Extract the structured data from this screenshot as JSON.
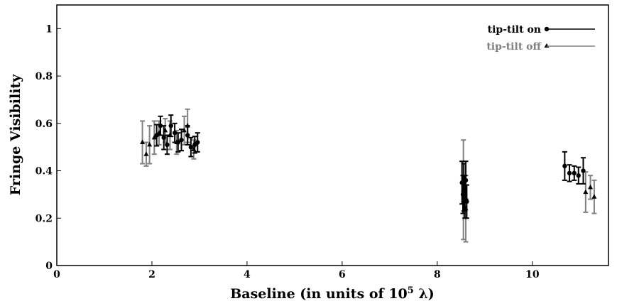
{
  "chart_data": {
    "type": "scatter",
    "xlabel": "Baseline (in units of 10",
    "xlabel_exp": "5",
    "xlabel_tail": " λ)",
    "ylabel": "Fringe Visibility",
    "xlim": [
      0,
      11.6
    ],
    "ylim": [
      0,
      1.1
    ],
    "x_ticks": [
      0,
      2,
      4,
      6,
      8,
      10
    ],
    "y_ticks": [
      0,
      0.2,
      0.4,
      0.6,
      0.8,
      1
    ],
    "x_tick_labels": [
      "0",
      "2",
      "4",
      "6",
      "8",
      "10"
    ],
    "y_tick_labels": [
      "0",
      "0.2",
      "0.4",
      "0.6",
      "0.8",
      "1"
    ],
    "legend_position": "top-right",
    "series": [
      {
        "name": "tip-tilt on",
        "marker": "circle",
        "color": "#000000",
        "points": [
          {
            "x": 2.1,
            "y": 0.55,
            "err": 0.045
          },
          {
            "x": 2.18,
            "y": 0.59,
            "err": 0.04
          },
          {
            "x": 2.25,
            "y": 0.54,
            "err": 0.05
          },
          {
            "x": 2.32,
            "y": 0.51,
            "err": 0.04
          },
          {
            "x": 2.4,
            "y": 0.59,
            "err": 0.045
          },
          {
            "x": 2.48,
            "y": 0.56,
            "err": 0.04
          },
          {
            "x": 2.55,
            "y": 0.52,
            "err": 0.04
          },
          {
            "x": 2.62,
            "y": 0.53,
            "err": 0.045
          },
          {
            "x": 2.75,
            "y": 0.55,
            "err": 0.04
          },
          {
            "x": 2.82,
            "y": 0.5,
            "err": 0.04
          },
          {
            "x": 2.9,
            "y": 0.51,
            "err": 0.035
          },
          {
            "x": 2.96,
            "y": 0.52,
            "err": 0.04
          },
          {
            "x": 8.52,
            "y": 0.35,
            "err": 0.09
          },
          {
            "x": 8.54,
            "y": 0.3,
            "err": 0.08
          },
          {
            "x": 8.56,
            "y": 0.33,
            "err": 0.1
          },
          {
            "x": 8.58,
            "y": 0.29,
            "err": 0.09
          },
          {
            "x": 8.6,
            "y": 0.36,
            "err": 0.08
          },
          {
            "x": 8.62,
            "y": 0.27,
            "err": 0.07
          },
          {
            "x": 10.68,
            "y": 0.42,
            "err": 0.06
          },
          {
            "x": 10.78,
            "y": 0.39,
            "err": 0.035
          },
          {
            "x": 10.88,
            "y": 0.39,
            "err": 0.03
          },
          {
            "x": 10.97,
            "y": 0.38,
            "err": 0.035
          },
          {
            "x": 11.07,
            "y": 0.4,
            "err": 0.055
          }
        ]
      },
      {
        "name": "tip-tilt off",
        "marker": "triangle",
        "color": "#808080",
        "points": [
          {
            "x": 1.8,
            "y": 0.52,
            "err": 0.09
          },
          {
            "x": 1.88,
            "y": 0.47,
            "err": 0.05
          },
          {
            "x": 1.95,
            "y": 0.51,
            "err": 0.08
          },
          {
            "x": 2.05,
            "y": 0.54,
            "err": 0.07
          },
          {
            "x": 2.15,
            "y": 0.56,
            "err": 0.05
          },
          {
            "x": 2.28,
            "y": 0.57,
            "err": 0.05
          },
          {
            "x": 2.38,
            "y": 0.55,
            "err": 0.06
          },
          {
            "x": 2.52,
            "y": 0.52,
            "err": 0.05
          },
          {
            "x": 2.68,
            "y": 0.57,
            "err": 0.06
          },
          {
            "x": 2.75,
            "y": 0.59,
            "err": 0.07
          },
          {
            "x": 2.88,
            "y": 0.49,
            "err": 0.04
          },
          {
            "x": 8.55,
            "y": 0.32,
            "err": 0.21
          },
          {
            "x": 8.6,
            "y": 0.24,
            "err": 0.14
          },
          {
            "x": 11.12,
            "y": 0.31,
            "err": 0.085
          },
          {
            "x": 11.22,
            "y": 0.33,
            "err": 0.05
          },
          {
            "x": 11.3,
            "y": 0.29,
            "err": 0.07
          }
        ]
      }
    ]
  }
}
